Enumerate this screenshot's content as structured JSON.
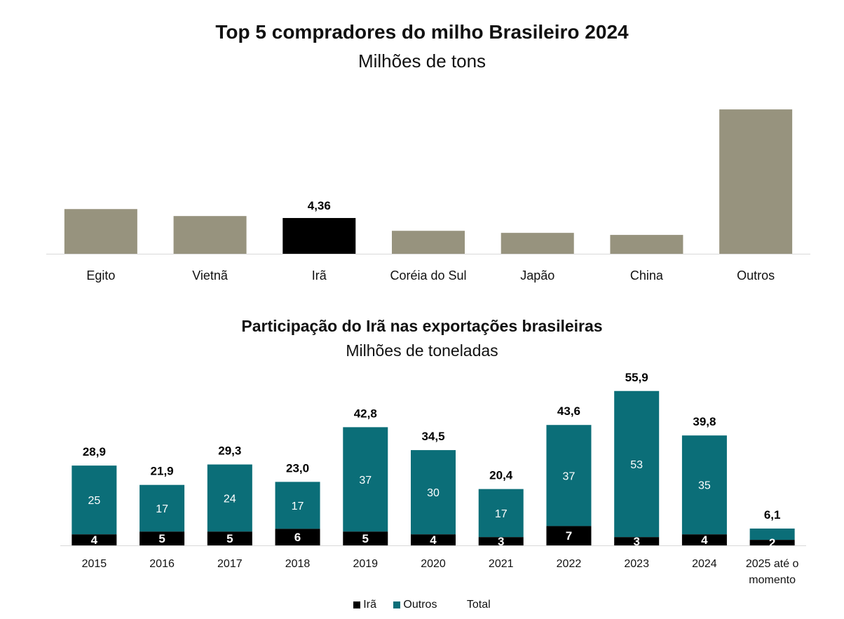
{
  "colors": {
    "gray": "#97937e",
    "ira": "#000000",
    "teal": "#0b6e78",
    "axis": "#d9d9d9"
  },
  "chart_data": [
    {
      "type": "bar",
      "title": "Top 5 compradores do milho Brasileiro 2024",
      "subtitle": "Milhões de tons",
      "categories": [
        "Egito",
        "Vietnã",
        "Irã",
        "Coréia do Sul",
        "Japão",
        "China",
        "Outros"
      ],
      "values": [
        5.45,
        4.6,
        4.36,
        2.8,
        2.55,
        2.3,
        17.6
      ],
      "highlight_index": 2,
      "data_labels": [
        "",
        "",
        "4,36",
        "",
        "",
        "",
        ""
      ],
      "xlabel": "",
      "ylabel": "",
      "ylim": [
        0,
        18
      ],
      "grid": false
    },
    {
      "type": "bar",
      "stacked": true,
      "title": "Participação do Irã nas exportações brasileiras",
      "subtitle": "Milhões de toneladas",
      "categories": [
        "2015",
        "2016",
        "2017",
        "2018",
        "2019",
        "2020",
        "2021",
        "2022",
        "2023",
        "2024",
        "2025 até o momento"
      ],
      "series": [
        {
          "name": "Irã",
          "values": [
            4,
            5,
            5,
            6,
            5,
            4,
            3,
            7,
            3,
            4,
            2
          ],
          "labels": [
            "4",
            "5",
            "5",
            "6",
            "5",
            "4",
            "3",
            "7",
            "3",
            "4",
            "2"
          ]
        },
        {
          "name": "Outros",
          "values": [
            25,
            17,
            24,
            17,
            37,
            30,
            17,
            37,
            53,
            35,
            4
          ],
          "labels": [
            "25",
            "17",
            "24",
            "17",
            "37",
            "30",
            "17",
            "37",
            "53",
            "35",
            ""
          ]
        }
      ],
      "totals": [
        28.9,
        21.9,
        29.3,
        23.0,
        42.8,
        34.5,
        20.4,
        43.6,
        55.9,
        39.8,
        6.1
      ],
      "total_labels": [
        "28,9",
        "21,9",
        "29,3",
        "23,0",
        "42,8",
        "34,5",
        "20,4",
        "43,6",
        "55,9",
        "39,8",
        "6,1"
      ],
      "legend": [
        "Irã",
        "Outros",
        "Total"
      ],
      "legend_position": "bottom",
      "xlabel": "",
      "ylabel": "",
      "ylim": [
        0,
        60
      ],
      "grid": false
    }
  ]
}
